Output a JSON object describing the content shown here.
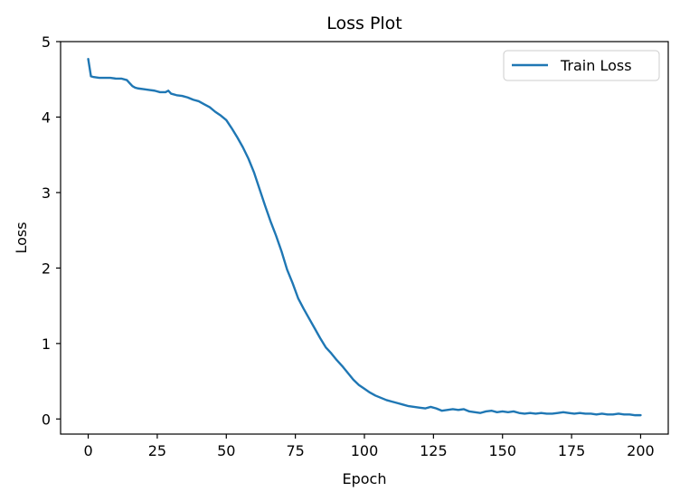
{
  "chart_data": {
    "type": "line",
    "title": "Loss Plot",
    "xlabel": "Epoch",
    "ylabel": "Loss",
    "xlim": [
      -10,
      210
    ],
    "ylim": [
      -0.2,
      5
    ],
    "xticks": [
      0,
      25,
      50,
      75,
      100,
      125,
      150,
      175,
      200
    ],
    "yticks": [
      0,
      1,
      2,
      3,
      4,
      5
    ],
    "grid": false,
    "legend_position": "top-right",
    "series": [
      {
        "name": "Train Loss",
        "color": "#1f77b4",
        "x": [
          0,
          1,
          2,
          4,
          6,
          8,
          10,
          12,
          14,
          15,
          16,
          17,
          18,
          20,
          22,
          24,
          26,
          28,
          29,
          30,
          32,
          34,
          36,
          38,
          40,
          42,
          44,
          46,
          48,
          50,
          52,
          54,
          56,
          58,
          60,
          62,
          64,
          66,
          68,
          70,
          72,
          74,
          76,
          78,
          80,
          82,
          84,
          86,
          88,
          90,
          92,
          94,
          96,
          98,
          100,
          102,
          104,
          106,
          108,
          110,
          112,
          114,
          116,
          118,
          120,
          122,
          124,
          126,
          128,
          130,
          132,
          134,
          136,
          138,
          140,
          142,
          144,
          146,
          148,
          150,
          152,
          154,
          156,
          158,
          160,
          162,
          164,
          166,
          168,
          170,
          172,
          174,
          176,
          178,
          180,
          182,
          184,
          186,
          188,
          190,
          192,
          194,
          196,
          198,
          200
        ],
        "y": [
          4.77,
          4.54,
          4.53,
          4.52,
          4.52,
          4.52,
          4.51,
          4.51,
          4.49,
          4.45,
          4.41,
          4.39,
          4.38,
          4.37,
          4.36,
          4.35,
          4.33,
          4.33,
          4.35,
          4.31,
          4.29,
          4.28,
          4.26,
          4.23,
          4.21,
          4.17,
          4.13,
          4.07,
          4.02,
          3.96,
          3.85,
          3.73,
          3.6,
          3.45,
          3.27,
          3.05,
          2.83,
          2.62,
          2.43,
          2.22,
          1.98,
          1.8,
          1.6,
          1.46,
          1.33,
          1.2,
          1.07,
          0.95,
          0.87,
          0.78,
          0.7,
          0.61,
          0.52,
          0.45,
          0.4,
          0.35,
          0.31,
          0.28,
          0.25,
          0.23,
          0.21,
          0.19,
          0.17,
          0.16,
          0.15,
          0.14,
          0.16,
          0.14,
          0.11,
          0.12,
          0.13,
          0.12,
          0.13,
          0.1,
          0.09,
          0.08,
          0.1,
          0.11,
          0.09,
          0.1,
          0.09,
          0.1,
          0.08,
          0.07,
          0.08,
          0.07,
          0.08,
          0.07,
          0.07,
          0.08,
          0.09,
          0.08,
          0.07,
          0.08,
          0.07,
          0.07,
          0.06,
          0.07,
          0.06,
          0.06,
          0.07,
          0.06,
          0.06,
          0.05,
          0.05
        ]
      }
    ]
  }
}
